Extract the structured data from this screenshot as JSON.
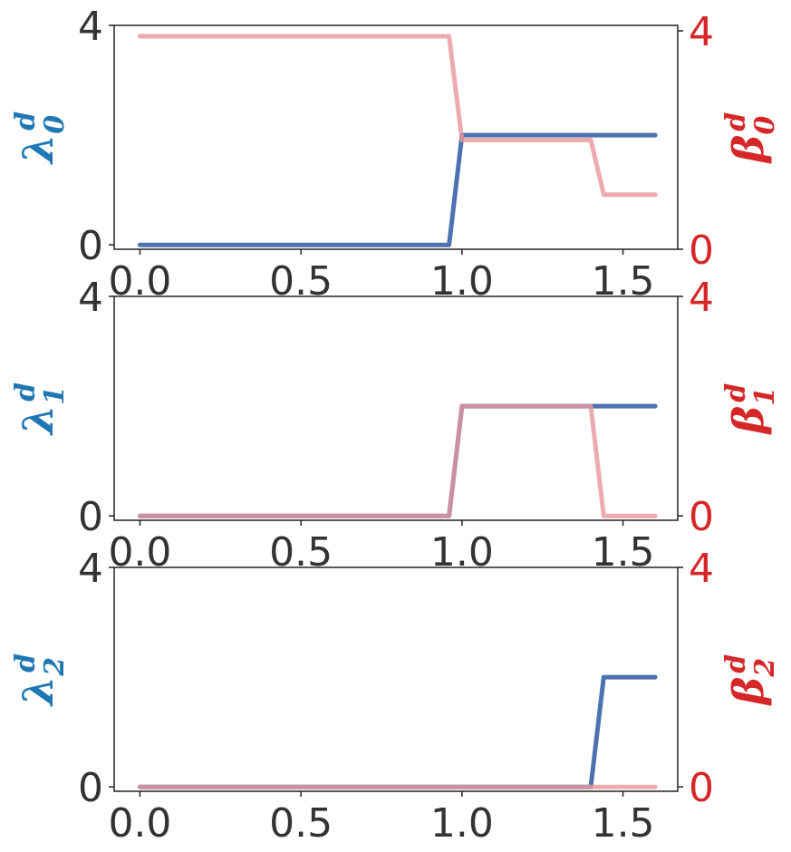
{
  "chart_data": [
    {
      "type": "line",
      "ylabel_left": {
        "base": "λ",
        "sub": "0",
        "sup": "d"
      },
      "ylabel_right": {
        "base": "β",
        "sub": "0",
        "sup": "d"
      },
      "x_ticks": [
        "0.0",
        "0.5",
        "1.0",
        "1.5"
      ],
      "y_left_ticks": [
        "0",
        "4"
      ],
      "y_right_ticks": [
        "0",
        "4"
      ],
      "xlim": [
        -0.08,
        1.67
      ],
      "ylim_left": [
        -0.08,
        4.0
      ],
      "ylim_right": [
        0.0,
        4.1
      ],
      "series": [
        {
          "axis": "left",
          "color": "#4c72b0",
          "x": [
            0.0,
            0.96,
            1.0,
            1.6
          ],
          "y": [
            0,
            0,
            2,
            2
          ]
        },
        {
          "axis": "right",
          "color": "#e8999c",
          "x": [
            0.0,
            0.96,
            1.0,
            1.4,
            1.44,
            1.6
          ],
          "y": [
            3.9,
            3.9,
            2.0,
            2.0,
            1.0,
            1.0
          ]
        }
      ]
    },
    {
      "type": "line",
      "ylabel_left": {
        "base": "λ",
        "sub": "1",
        "sup": "d"
      },
      "ylabel_right": {
        "base": "β",
        "sub": "1",
        "sup": "d"
      },
      "x_ticks": [
        "0.0",
        "0.5",
        "1.0",
        "1.5"
      ],
      "y_left_ticks": [
        "0",
        "4"
      ],
      "y_right_ticks": [
        "0",
        "4"
      ],
      "xlim": [
        -0.08,
        1.67
      ],
      "ylim_left": [
        -0.08,
        4.0
      ],
      "ylim_right": [
        -0.08,
        4.0
      ],
      "series": [
        {
          "axis": "left",
          "color": "#4c72b0",
          "x": [
            0.0,
            0.96,
            1.0,
            1.6
          ],
          "y": [
            0,
            0,
            2,
            2
          ]
        },
        {
          "axis": "right",
          "color": "#e8999c",
          "x": [
            0.0,
            0.96,
            1.0,
            1.4,
            1.44,
            1.6
          ],
          "y": [
            0,
            0,
            2,
            2,
            0,
            0
          ]
        }
      ]
    },
    {
      "type": "line",
      "ylabel_left": {
        "base": "λ",
        "sub": "2",
        "sup": "d"
      },
      "ylabel_right": {
        "base": "β",
        "sub": "2",
        "sup": "d"
      },
      "x_ticks": [
        "0.0",
        "0.5",
        "1.0",
        "1.5"
      ],
      "y_left_ticks": [
        "0",
        "4"
      ],
      "y_right_ticks": [
        "0",
        "4"
      ],
      "xlim": [
        -0.08,
        1.67
      ],
      "ylim_left": [
        -0.08,
        4.0
      ],
      "ylim_right": [
        -0.08,
        4.0
      ],
      "series": [
        {
          "axis": "left",
          "color": "#4c72b0",
          "x": [
            0.0,
            1.4,
            1.44,
            1.6
          ],
          "y": [
            0,
            0,
            2,
            2
          ]
        },
        {
          "axis": "right",
          "color": "#e8999c",
          "x": [
            0.0,
            1.6
          ],
          "y": [
            0,
            0
          ]
        }
      ]
    }
  ],
  "colors": {
    "left_label": "#1f77b4",
    "right_label": "#d62728",
    "tick_left": "#333333",
    "tick_right": "#d62728",
    "axes": "#222222"
  }
}
